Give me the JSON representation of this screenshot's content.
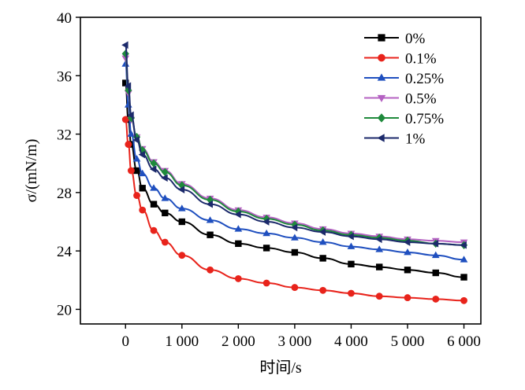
{
  "chart_data": {
    "type": "line",
    "title": "",
    "xlabel": "时间/s",
    "ylabel": "σ/(mN/m)",
    "xlim": [
      -800,
      6300
    ],
    "ylim": [
      19,
      40
    ],
    "x_ticks": [
      0,
      1000,
      2000,
      3000,
      4000,
      5000,
      6000
    ],
    "x_tick_labels": [
      "0",
      "1 000",
      "2 000",
      "3 000",
      "4 000",
      "5 000",
      "6 000"
    ],
    "y_ticks": [
      20,
      24,
      28,
      32,
      36,
      40
    ],
    "y_tick_labels": [
      "20",
      "24",
      "28",
      "32",
      "36",
      "40"
    ],
    "grid": false,
    "legend_position": "top-right",
    "x": [
      0,
      50,
      100,
      200,
      300,
      500,
      700,
      1000,
      1500,
      2000,
      2500,
      3000,
      3500,
      4000,
      4500,
      5000,
      5500,
      6000
    ],
    "series": [
      {
        "name": "0%",
        "color": "#000000",
        "marker": "square",
        "values": [
          35.5,
          33.0,
          31.3,
          29.5,
          28.3,
          27.2,
          26.6,
          26.0,
          25.1,
          24.5,
          24.2,
          23.9,
          23.5,
          23.1,
          22.9,
          22.7,
          22.5,
          22.2
        ]
      },
      {
        "name": "0.1%",
        "color": "#e8231b",
        "marker": "circle",
        "values": [
          33.0,
          31.3,
          29.5,
          27.8,
          26.8,
          25.4,
          24.6,
          23.7,
          22.7,
          22.1,
          21.8,
          21.5,
          21.3,
          21.1,
          20.9,
          20.8,
          20.7,
          20.6
        ]
      },
      {
        "name": "0.25%",
        "color": "#1f4fbf",
        "marker": "triangle-up",
        "values": [
          36.8,
          34.0,
          32.0,
          30.3,
          29.3,
          28.3,
          27.6,
          26.9,
          26.1,
          25.5,
          25.2,
          24.9,
          24.6,
          24.3,
          24.1,
          23.9,
          23.7,
          23.4
        ]
      },
      {
        "name": "0.5%",
        "color": "#b461c2",
        "marker": "triangle-down",
        "values": [
          37.2,
          34.8,
          33.0,
          31.8,
          31.0,
          30.1,
          29.5,
          28.6,
          27.6,
          26.8,
          26.3,
          25.9,
          25.5,
          25.2,
          25.0,
          24.8,
          24.7,
          24.6
        ]
      },
      {
        "name": "0.75%",
        "color": "#1f8a3c",
        "marker": "diamond",
        "values": [
          37.5,
          35.0,
          33.1,
          31.8,
          30.9,
          30.0,
          29.4,
          28.5,
          27.5,
          26.7,
          26.2,
          25.8,
          25.4,
          25.1,
          24.9,
          24.7,
          24.5,
          24.4
        ]
      },
      {
        "name": "1%",
        "color": "#1c2a6b",
        "marker": "triangle-left",
        "values": [
          38.1,
          35.3,
          33.3,
          31.6,
          30.6,
          29.6,
          29.0,
          28.2,
          27.2,
          26.5,
          26.0,
          25.6,
          25.3,
          25.0,
          24.8,
          24.6,
          24.5,
          24.4
        ]
      }
    ]
  }
}
